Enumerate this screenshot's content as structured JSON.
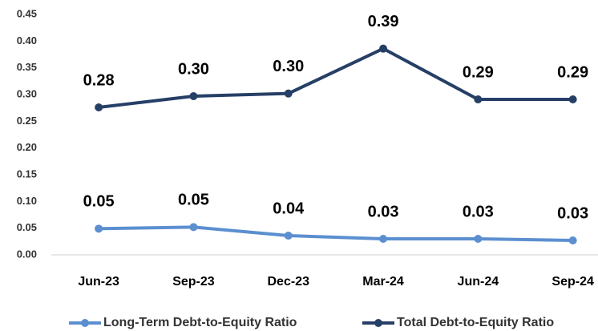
{
  "chart_data": {
    "type": "line",
    "categories": [
      "Jun-23",
      "Sep-23",
      "Dec-23",
      "Mar-24",
      "Jun-24",
      "Sep-24"
    ],
    "series": [
      {
        "name": "Long-Term Debt-to-Equity Ratio",
        "color": "#5b8fd0",
        "values": [
          0.049,
          0.052,
          0.036,
          0.03,
          0.03,
          0.027
        ],
        "value_labels": [
          "0.05",
          "0.05",
          "0.04",
          "0.03",
          "0.03",
          "0.03"
        ]
      },
      {
        "name": "Total Debt-to-Equity Ratio",
        "color": "#263f66",
        "values": [
          0.276,
          0.297,
          0.302,
          0.386,
          0.291,
          0.291
        ],
        "value_labels": [
          "0.28",
          "0.30",
          "0.30",
          "0.39",
          "0.29",
          "0.29"
        ]
      }
    ],
    "ylim": [
      0,
      0.45
    ],
    "yticks": [
      {
        "value": 0,
        "label": "0.00"
      },
      0.05,
      {
        "value": 0.1,
        "label": "0.10"
      },
      0.15,
      {
        "value": 0.2,
        "label": "0.20"
      },
      0.25,
      {
        "value": 0.3,
        "label": "0.30"
      },
      0.35,
      {
        "value": 0.4,
        "label": "0.40"
      },
      0.45
    ],
    "grid": false,
    "legend": "bottom"
  }
}
